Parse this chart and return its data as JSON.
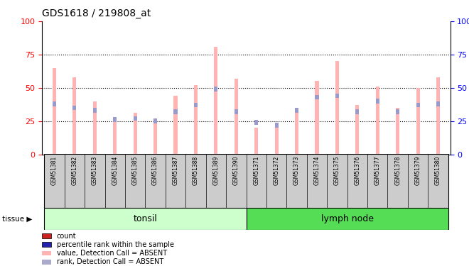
{
  "title": "GDS1618 / 219808_at",
  "samples": [
    "GSM51381",
    "GSM51382",
    "GSM51383",
    "GSM51384",
    "GSM51385",
    "GSM51386",
    "GSM51387",
    "GSM51388",
    "GSM51389",
    "GSM51390",
    "GSM51371",
    "GSM51372",
    "GSM51373",
    "GSM51374",
    "GSM51375",
    "GSM51376",
    "GSM51377",
    "GSM51378",
    "GSM51379",
    "GSM51380"
  ],
  "pink_values": [
    65,
    58,
    40,
    28,
    31,
    25,
    44,
    52,
    81,
    57,
    20,
    20,
    35,
    55,
    70,
    37,
    51,
    35,
    50,
    58
  ],
  "blue_values": [
    38,
    35,
    33,
    26,
    27,
    25,
    32,
    37,
    49,
    32,
    24,
    22,
    33,
    43,
    44,
    32,
    40,
    32,
    37,
    38
  ],
  "tonsil_count": 10,
  "lymph_count": 10,
  "tonsil_label": "tonsil",
  "lymph_label": "lymph node",
  "tissue_label": "tissue",
  "ylim": [
    0,
    100
  ],
  "yticks": [
    0,
    25,
    50,
    75,
    100
  ],
  "pink_color": "#FFB3B3",
  "blue_color": "#9999CC",
  "red_color": "#CC2222",
  "dark_blue_color": "#2222AA",
  "light_blue_legend": "#AAAACC",
  "tonsil_bg": "#CCFFCC",
  "lymph_bg": "#55DD55",
  "tick_label_bg": "#CCCCCC",
  "legend_items": [
    {
      "color": "#CC2222",
      "label": "count"
    },
    {
      "color": "#2222AA",
      "label": "percentile rank within the sample"
    },
    {
      "color": "#FFB3B3",
      "label": "value, Detection Call = ABSENT"
    },
    {
      "color": "#AAAACC",
      "label": "rank, Detection Call = ABSENT"
    }
  ]
}
